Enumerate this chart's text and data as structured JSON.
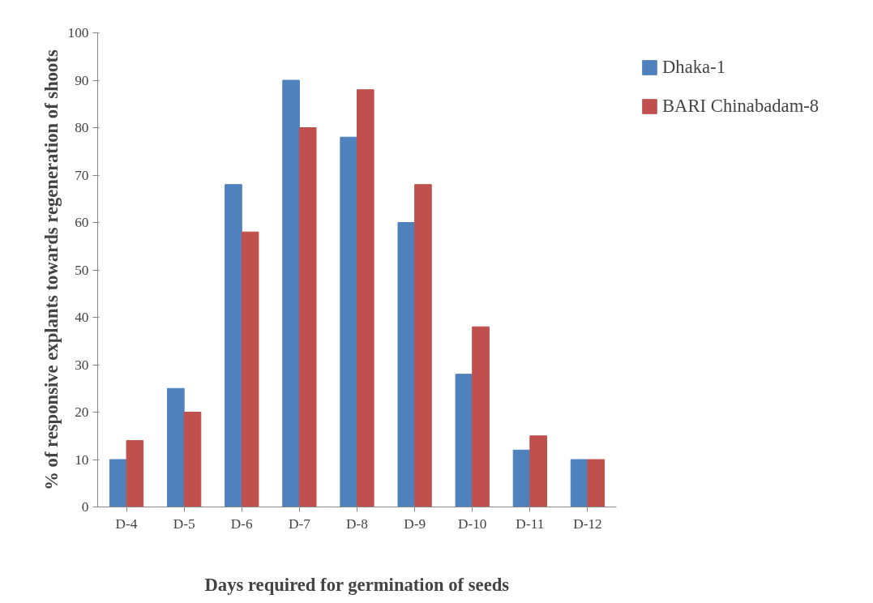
{
  "chart_data": {
    "type": "bar",
    "xlabel": "Days required for germination of seeds",
    "ylabel": "% of responsive explants towards regeneration of shoots",
    "categories": [
      "D-4",
      "D-5",
      "D-6",
      "D-7",
      "D-8",
      "D-9",
      "D-10",
      "D-11",
      "D-12"
    ],
    "series": [
      {
        "name": "Dhaka-1",
        "color": "#4f81bd",
        "values": [
          10,
          25,
          68,
          90,
          78,
          60,
          28,
          12,
          10
        ]
      },
      {
        "name": "BARI Chinabadam-8",
        "color": "#c0504d",
        "values": [
          14,
          20,
          58,
          80,
          88,
          68,
          38,
          15,
          10
        ]
      }
    ],
    "ylim": [
      0,
      100
    ],
    "yticks": [
      0,
      10,
      20,
      30,
      40,
      50,
      60,
      70,
      80,
      90,
      100
    ],
    "grid": false,
    "legend": "right"
  }
}
